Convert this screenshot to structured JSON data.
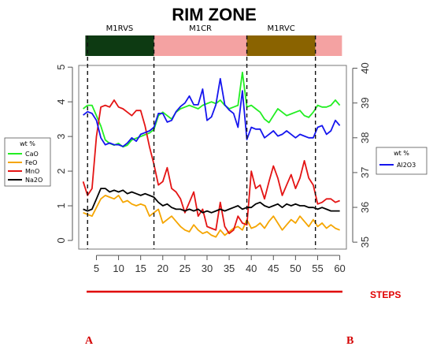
{
  "chart_data": {
    "type": "line",
    "title": "RIM ZONE",
    "zones": [
      {
        "label": "M1RVS",
        "from": 2.5,
        "to": 18,
        "color": "#0d3a12"
      },
      {
        "label": "M1CR",
        "from": 18,
        "to": 39,
        "color": "#f4a2a2"
      },
      {
        "label": "M1RVC",
        "from": 39,
        "to": 54.5,
        "color": "#8a6300"
      },
      {
        "label": "",
        "from": 54.5,
        "to": 60.5,
        "color": "#f4a2a2"
      }
    ],
    "boundaries": [
      3,
      18,
      39,
      54.5
    ],
    "xlim": [
      1,
      61.5
    ],
    "x_ticks": [
      5,
      10,
      15,
      20,
      25,
      30,
      35,
      40,
      45,
      50,
      55,
      60
    ],
    "ylim_left": [
      -0.25,
      5.05
    ],
    "y_ticks_left": [
      0,
      1,
      2,
      3,
      4,
      5
    ],
    "ylim_right": [
      34.8,
      40.08
    ],
    "y_ticks_right": [
      35,
      36,
      37,
      38,
      39,
      40
    ],
    "x": [
      2,
      3,
      4,
      5,
      6,
      7,
      8,
      9,
      10,
      11,
      12,
      13,
      14,
      15,
      16,
      17,
      18,
      19,
      20,
      21,
      22,
      23,
      24,
      25,
      26,
      27,
      28,
      29,
      30,
      31,
      32,
      33,
      34,
      35,
      36,
      37,
      38,
      39,
      40,
      41,
      42,
      43,
      44,
      45,
      46,
      47,
      48,
      49,
      50,
      51,
      52,
      53,
      54,
      55,
      56,
      57,
      58,
      59,
      60
    ],
    "series": [
      {
        "name": "CaO",
        "axis": "left",
        "color": "#22ee22",
        "values": [
          3.8,
          3.9,
          3.9,
          3.6,
          3.3,
          2.9,
          2.8,
          2.75,
          2.8,
          2.7,
          2.75,
          2.9,
          2.95,
          3.0,
          3.05,
          3.1,
          3.2,
          3.6,
          3.7,
          3.6,
          3.5,
          3.7,
          3.8,
          3.85,
          3.9,
          3.85,
          3.8,
          3.9,
          3.95,
          4.0,
          3.95,
          4.05,
          3.9,
          3.8,
          3.85,
          3.9,
          4.85,
          3.85,
          3.9,
          3.8,
          3.7,
          3.5,
          3.4,
          3.6,
          3.8,
          3.7,
          3.6,
          3.65,
          3.7,
          3.75,
          3.6,
          3.55,
          3.7,
          3.9,
          3.85,
          3.85,
          3.9,
          4.05,
          3.9
        ]
      },
      {
        "name": "FeO",
        "axis": "left",
        "color": "#f5a500",
        "values": [
          0.8,
          0.75,
          0.7,
          0.95,
          1.2,
          1.3,
          1.25,
          1.2,
          1.3,
          1.1,
          1.15,
          1.05,
          1.0,
          1.05,
          1.0,
          0.7,
          0.8,
          0.9,
          0.5,
          0.6,
          0.7,
          0.55,
          0.4,
          0.3,
          0.25,
          0.45,
          0.3,
          0.2,
          0.25,
          0.15,
          0.1,
          0.3,
          0.15,
          0.25,
          0.35,
          0.4,
          0.3,
          0.6,
          0.35,
          0.4,
          0.5,
          0.35,
          0.55,
          0.7,
          0.5,
          0.3,
          0.45,
          0.6,
          0.5,
          0.7,
          0.55,
          0.4,
          0.6,
          0.4,
          0.5,
          0.35,
          0.45,
          0.35,
          0.3
        ]
      },
      {
        "name": "MnO",
        "axis": "left",
        "color": "#e41414",
        "values": [
          1.7,
          1.3,
          1.5,
          3.0,
          3.85,
          3.9,
          3.85,
          4.05,
          3.85,
          3.8,
          3.7,
          3.6,
          3.75,
          3.75,
          3.3,
          2.7,
          2.2,
          1.6,
          1.7,
          2.1,
          1.5,
          1.4,
          1.2,
          0.8,
          1.1,
          1.4,
          0.7,
          0.9,
          0.4,
          0.35,
          0.3,
          1.1,
          0.4,
          0.2,
          0.3,
          0.7,
          0.5,
          0.45,
          2.0,
          1.5,
          1.6,
          1.2,
          1.7,
          2.15,
          1.8,
          1.3,
          1.6,
          1.9,
          1.5,
          1.8,
          2.3,
          1.8,
          1.6,
          1.05,
          1.1,
          1.2,
          1.2,
          1.1,
          1.15
        ]
      },
      {
        "name": "Na2O",
        "axis": "left",
        "color": "#000000",
        "values": [
          0.9,
          0.85,
          0.9,
          1.2,
          1.5,
          1.5,
          1.4,
          1.45,
          1.4,
          1.45,
          1.35,
          1.4,
          1.35,
          1.3,
          1.35,
          1.3,
          1.25,
          1.1,
          1.0,
          1.05,
          0.95,
          0.9,
          0.9,
          0.85,
          0.9,
          0.85,
          0.9,
          0.8,
          0.85,
          0.8,
          0.85,
          0.9,
          0.85,
          0.9,
          0.95,
          1.0,
          0.9,
          0.95,
          0.95,
          1.05,
          1.1,
          1.0,
          0.95,
          1.0,
          1.05,
          0.95,
          1.05,
          1.0,
          1.05,
          1.0,
          1.0,
          0.95,
          0.95,
          0.9,
          0.95,
          0.9,
          0.85,
          0.85,
          0.85
        ]
      },
      {
        "name": "Al2O3",
        "axis": "right",
        "color": "#1515ee",
        "values": [
          38.65,
          38.75,
          38.7,
          38.5,
          38.0,
          37.8,
          37.85,
          37.8,
          37.8,
          37.75,
          37.85,
          38.0,
          37.9,
          38.1,
          38.15,
          38.2,
          38.3,
          38.7,
          38.7,
          38.45,
          38.5,
          38.75,
          38.9,
          39.0,
          39.2,
          38.95,
          38.95,
          39.4,
          38.5,
          38.6,
          38.95,
          39.7,
          38.95,
          38.8,
          38.7,
          38.3,
          39.35,
          37.95,
          38.3,
          38.25,
          38.25,
          38.0,
          38.1,
          38.2,
          38.05,
          38.1,
          38.2,
          38.1,
          38.0,
          38.1,
          38.05,
          38.0,
          38.0,
          38.3,
          38.35,
          38.1,
          38.2,
          38.5,
          38.35
        ]
      }
    ],
    "legend_left": {
      "title": "wt %",
      "entries": [
        "CaO",
        "FeO",
        "MnO",
        "Na2O"
      ]
    },
    "legend_right": {
      "title": "wt %",
      "entries": [
        "Al2O3"
      ]
    }
  },
  "annotations": {
    "steps_label": "STEPS",
    "point_a": "A",
    "point_b": "B"
  }
}
